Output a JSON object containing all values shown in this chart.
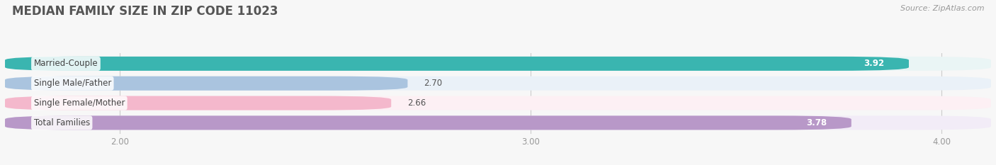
{
  "title": "MEDIAN FAMILY SIZE IN ZIP CODE 11023",
  "source": "Source: ZipAtlas.com",
  "categories": [
    "Married-Couple",
    "Single Male/Father",
    "Single Female/Mother",
    "Total Families"
  ],
  "values": [
    3.92,
    2.7,
    2.66,
    3.78
  ],
  "bar_colors": [
    "#3ab5b0",
    "#aac4df",
    "#f4b8cc",
    "#b898c8"
  ],
  "bar_bg_colors": [
    "#eaf5f5",
    "#eaf1f8",
    "#fdf0f4",
    "#f2ecf7"
  ],
  "xlim": [
    1.72,
    4.12
  ],
  "xticks": [
    2.0,
    3.0,
    4.0
  ],
  "background_color": "#f7f7f7",
  "bar_height": 0.72,
  "title_fontsize": 12,
  "label_fontsize": 8.5,
  "value_fontsize": 8.5,
  "tick_fontsize": 8.5
}
